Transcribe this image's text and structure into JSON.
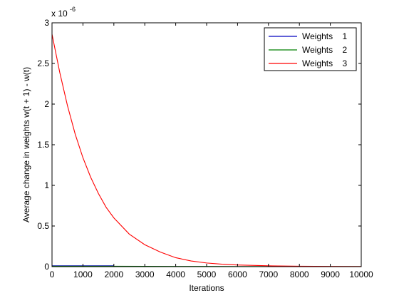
{
  "chart_data": {
    "type": "line",
    "xlabel": "Iterations",
    "ylabel": "Average change in weights w(t + 1) - w(t)",
    "y_multiplier_base": "x 10",
    "y_multiplier_exponent": "-6",
    "xlim": [
      0,
      10000
    ],
    "ylim": [
      0,
      3
    ],
    "x_ticks": [
      0,
      1000,
      2000,
      3000,
      4000,
      5000,
      6000,
      7000,
      8000,
      9000,
      10000
    ],
    "x_tick_labels": [
      "0",
      "1000",
      "2000",
      "3000",
      "4000",
      "5000",
      "6000",
      "7000",
      "8000",
      "9000",
      "10000"
    ],
    "y_ticks": [
      0,
      0.5,
      1,
      1.5,
      2,
      2.5,
      3
    ],
    "y_tick_labels": [
      "0",
      "0.5",
      "1",
      "1.5",
      "2",
      "2.5",
      "3"
    ],
    "grid": false,
    "legend_position": "top-right",
    "series": [
      {
        "name": "Weights    1",
        "color": "#0000bf",
        "x": [
          0,
          500,
          1000,
          1500,
          2000
        ],
        "y": [
          0.01,
          0.01,
          0.01,
          0.01,
          0.01
        ]
      },
      {
        "name": "Weights    2",
        "color": "#008000",
        "x": [
          0,
          1000,
          2000,
          3000,
          4000,
          5000,
          6000,
          7000,
          8000,
          9000,
          10000
        ],
        "y": [
          0.005,
          0.005,
          0.005,
          0.004,
          0.003,
          0.003,
          0.002,
          0.002,
          0.002,
          0.001,
          0.001
        ]
      },
      {
        "name": "Weights    3",
        "color": "#ff0000",
        "x": [
          0,
          250,
          500,
          750,
          1000,
          1250,
          1500,
          1750,
          2000,
          2500,
          3000,
          3500,
          4000,
          4500,
          5000,
          5500,
          6000,
          7000,
          8000,
          9000,
          10000
        ],
        "y": [
          2.86,
          2.39,
          1.98,
          1.63,
          1.34,
          1.1,
          0.9,
          0.73,
          0.6,
          0.4,
          0.27,
          0.18,
          0.11,
          0.07,
          0.045,
          0.03,
          0.02,
          0.01,
          0.005,
          0.003,
          0.002
        ]
      }
    ]
  }
}
